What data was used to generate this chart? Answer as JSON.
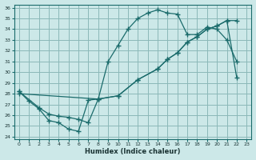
{
  "xlabel": "Humidex (Indice chaleur)",
  "bg_color": "#cce8e8",
  "grid_color": "#8cb8b8",
  "line_color": "#1a6b6b",
  "xlim": [
    0,
    23
  ],
  "ylim": [
    24,
    36
  ],
  "xticks": [
    0,
    1,
    2,
    3,
    4,
    5,
    6,
    7,
    8,
    9,
    10,
    11,
    12,
    13,
    14,
    15,
    16,
    17,
    18,
    19,
    20,
    21,
    22,
    23
  ],
  "yticks": [
    24,
    25,
    26,
    27,
    28,
    29,
    30,
    31,
    32,
    33,
    34,
    35,
    36
  ],
  "line1_x": [
    0,
    1,
    2,
    3,
    4,
    5,
    6,
    7,
    8,
    9,
    10,
    11,
    12,
    13,
    14,
    15,
    16,
    17,
    18,
    19,
    20,
    21,
    22
  ],
  "line1_y": [
    28.2,
    27.3,
    26.6,
    25.5,
    25.3,
    24.7,
    24.5,
    27.4,
    27.5,
    31.0,
    32.5,
    34.0,
    35.0,
    35.5,
    35.8,
    35.5,
    35.4,
    33.5,
    33.5,
    34.2,
    34.0,
    33.0,
    31.0
  ],
  "line2_x": [
    0,
    2,
    3,
    4,
    5,
    6,
    7,
    8,
    10,
    12,
    14,
    15,
    16,
    17,
    18,
    19,
    20,
    21,
    22
  ],
  "line2_y": [
    28.2,
    26.7,
    26.1,
    25.9,
    25.8,
    25.6,
    25.3,
    27.5,
    27.8,
    29.3,
    30.3,
    31.2,
    31.8,
    32.8,
    33.3,
    34.0,
    34.3,
    34.8,
    34.8
  ],
  "line3_x": [
    0,
    8,
    10,
    12,
    14,
    15,
    16,
    17,
    18,
    19,
    20,
    21,
    22
  ],
  "line3_y": [
    28.0,
    27.5,
    27.8,
    29.3,
    30.3,
    31.2,
    31.8,
    32.8,
    33.3,
    34.0,
    34.3,
    34.8,
    29.5
  ]
}
